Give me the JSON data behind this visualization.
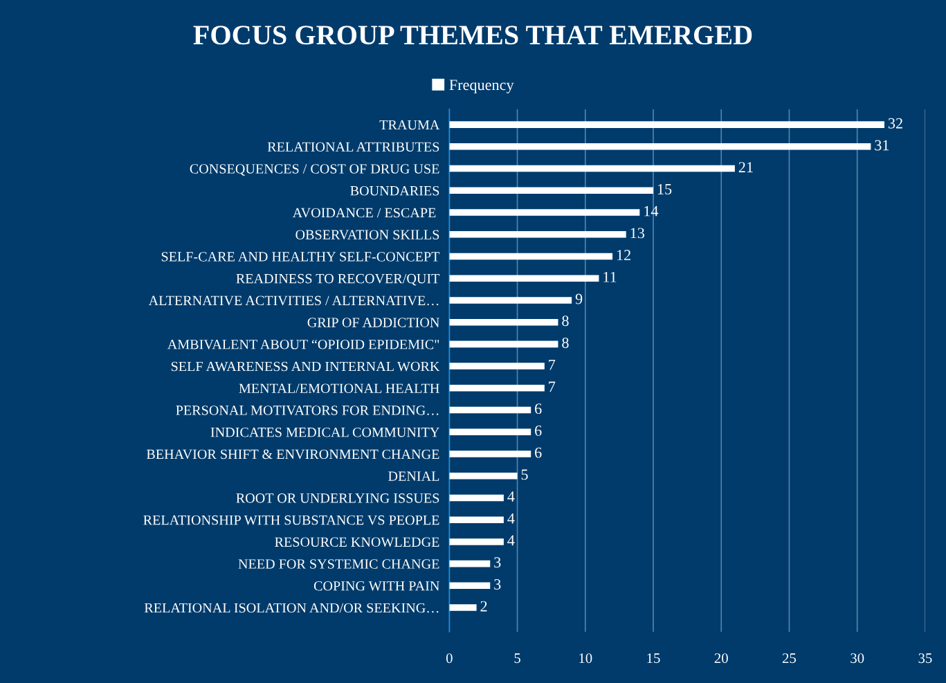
{
  "chart_data": {
    "type": "bar",
    "orientation": "horizontal",
    "title": "FOCUS GROUP THEMES THAT EMERGED",
    "categories": [
      "TRAUMA",
      "RELATIONAL ATTRIBUTES",
      "CONSEQUENCES / COST OF DRUG USE",
      "BOUNDARIES",
      "AVOIDANCE / ESCAPE ",
      "OBSERVATION SKILLS",
      "SELF-CARE AND HEALTHY SELF-CONCEPT",
      "READINESS TO RECOVER/QUIT",
      "ALTERNATIVE ACTIVITIES / ALTERNATIVE…",
      "GRIP OF ADDICTION",
      "AMBIVALENT ABOUT “OPIOID EPIDEMIC\"",
      "SELF AWARENESS AND INTERNAL WORK",
      "MENTAL/EMOTIONAL HEALTH",
      "PERSONAL MOTIVATORS FOR ENDING…",
      "INDICATES MEDICAL COMMUNITY",
      "BEHAVIOR SHIFT & ENVIRONMENT CHANGE",
      "DENIAL",
      "ROOT OR UNDERLYING ISSUES",
      "RELATIONSHIP WITH SUBSTANCE VS PEOPLE",
      "RESOURCE KNOWLEDGE",
      "NEED FOR SYSTEMIC CHANGE",
      "COPING WITH PAIN",
      "RELATIONAL ISOLATION AND/OR SEEKING…"
    ],
    "series": [
      {
        "name": "Frequency",
        "color": "#ffffff",
        "values": [
          32,
          31,
          21,
          15,
          14,
          13,
          12,
          11,
          9,
          8,
          8,
          7,
          7,
          6,
          6,
          6,
          5,
          4,
          4,
          4,
          3,
          3,
          2
        ]
      }
    ],
    "xlim": [
      0,
      35
    ],
    "xticks": [
      0,
      5,
      10,
      15,
      20,
      25,
      30,
      35
    ],
    "grid": "x",
    "legend": "top",
    "data_labels": true
  }
}
